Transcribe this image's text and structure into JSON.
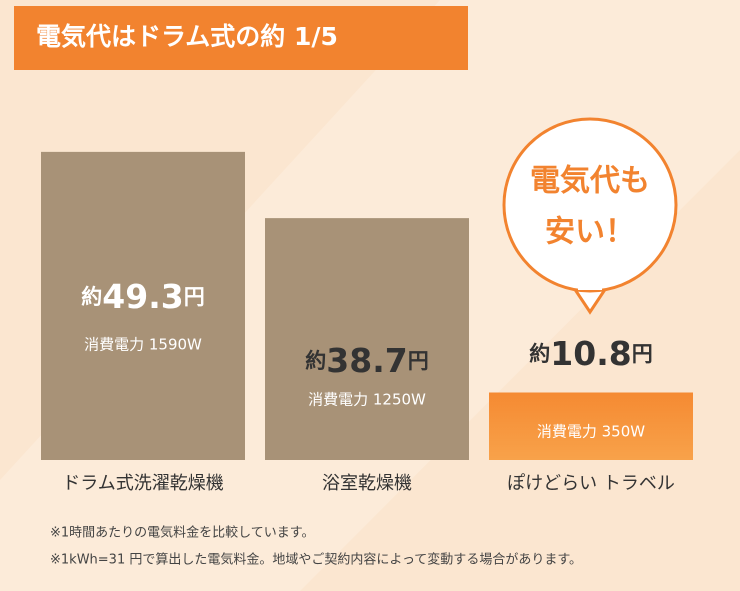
{
  "chart_data": {
    "type": "bar",
    "title": "電気代はドラム式の約 1/5",
    "categories": [
      "ドラム式洗濯乾燥機",
      "浴室乾燥機",
      "ぽけどらい トラベル"
    ],
    "values": [
      49.3,
      38.7,
      10.8
    ],
    "value_prefix": "約",
    "value_suffix": "円",
    "sublabels": [
      "消費電力 1590W",
      "消費電力 1250W",
      "消費電力 350W"
    ],
    "colors": [
      "#a89277",
      "#a89277",
      "#f5842c"
    ],
    "callout": [
      "電気代も",
      "安い！"
    ],
    "notes": [
      "※1時間あたりの電気料金を比較しています。",
      "※1kWh=31 円で算出した電気料金。地域やご契約内容によって変動する場合があります。"
    ]
  }
}
